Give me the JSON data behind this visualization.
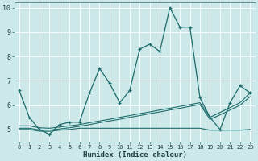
{
  "xlabel": "Humidex (Indice chaleur)",
  "xlim": [
    -0.5,
    23.5
  ],
  "ylim": [
    4.5,
    10.2
  ],
  "yticks": [
    5,
    6,
    7,
    8,
    9,
    10
  ],
  "xticks": [
    0,
    1,
    2,
    3,
    4,
    5,
    6,
    7,
    8,
    9,
    10,
    11,
    12,
    13,
    14,
    15,
    16,
    17,
    18,
    19,
    20,
    21,
    22,
    23
  ],
  "bg_color": "#cce8e8",
  "line_color": "#1e6b6b",
  "grid_color": "#ffffff",
  "series": [
    {
      "x": [
        0,
        1,
        2,
        3,
        4,
        5,
        6,
        7,
        8,
        9,
        10,
        11,
        12,
        13,
        14,
        15,
        16,
        17,
        18,
        19,
        20,
        21,
        22,
        23
      ],
      "y": [
        6.6,
        5.5,
        5.0,
        4.8,
        5.2,
        5.3,
        5.3,
        6.5,
        7.5,
        6.9,
        6.1,
        6.6,
        8.3,
        8.5,
        8.2,
        10.0,
        9.2,
        9.2,
        6.3,
        5.5,
        5.0,
        6.1,
        6.8,
        6.5
      ],
      "marker": true
    },
    {
      "x": [
        0,
        1,
        2,
        3,
        4,
        5,
        6,
        7,
        8,
        9,
        10,
        11,
        12,
        13,
        14,
        15,
        16,
        17,
        18,
        19,
        20,
        21,
        22,
        23
      ],
      "y": [
        5.15,
        5.15,
        5.07,
        5.05,
        5.1,
        5.15,
        5.2,
        5.28,
        5.35,
        5.42,
        5.5,
        5.57,
        5.65,
        5.72,
        5.8,
        5.87,
        5.95,
        6.02,
        6.1,
        5.5,
        5.7,
        5.9,
        6.1,
        6.5
      ],
      "marker": false
    },
    {
      "x": [
        0,
        1,
        2,
        3,
        4,
        5,
        6,
        7,
        8,
        9,
        10,
        11,
        12,
        13,
        14,
        15,
        16,
        17,
        18,
        19,
        20,
        21,
        22,
        23
      ],
      "y": [
        5.05,
        5.05,
        4.98,
        4.97,
        5.02,
        5.07,
        5.13,
        5.2,
        5.28,
        5.35,
        5.42,
        5.5,
        5.57,
        5.65,
        5.72,
        5.8,
        5.87,
        5.95,
        6.02,
        5.42,
        5.6,
        5.8,
        6.0,
        6.35
      ],
      "marker": false
    },
    {
      "x": [
        0,
        1,
        2,
        3,
        4,
        5,
        6,
        7,
        8,
        9,
        10,
        11,
        12,
        13,
        14,
        15,
        16,
        17,
        18,
        19,
        20,
        21,
        22,
        23
      ],
      "y": [
        5.0,
        5.0,
        4.93,
        4.92,
        4.97,
        5.0,
        5.05,
        5.05,
        5.05,
        5.05,
        5.05,
        5.05,
        5.05,
        5.05,
        5.05,
        5.05,
        5.05,
        5.05,
        5.05,
        4.97,
        4.97,
        4.97,
        4.97,
        5.0
      ],
      "marker": false
    }
  ]
}
